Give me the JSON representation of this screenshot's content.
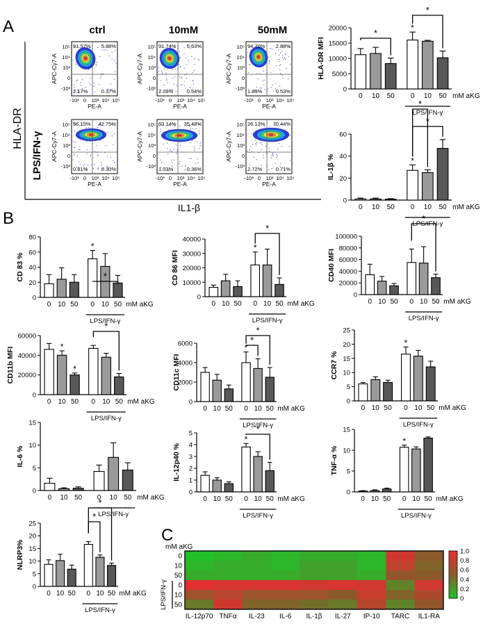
{
  "panels": {
    "A": "A",
    "B": "B",
    "C": "C"
  },
  "flow": {
    "conditions": [
      "ctrl",
      "10mM",
      "50mM"
    ],
    "row_label": "LPS/IFN-γ",
    "y_label": "HLA-DR",
    "x_label": "IL1-β",
    "axis_y": "APC-Cy7-A",
    "axis_x": "PE-A",
    "ticks_y": [
      "10⁵",
      "10⁴",
      "10³",
      "0",
      "-10³"
    ],
    "ticks_x": [
      "-10³",
      "0",
      "10³",
      "10⁴",
      "10⁵"
    ],
    "plots": [
      {
        "ul": "91.57%",
        "ur": "5.88%",
        "ll": "2.17%",
        "lr": "0.37%"
      },
      {
        "ul": "91.74%",
        "ur": "5.63%",
        "ll": "2.09%",
        "lr": "0.54%"
      },
      {
        "ul": "94.70%",
        "ur": "2.88%",
        "ll": "1.89%",
        "lr": "0.53%"
      },
      {
        "ul": "56.15%",
        "ur": "42.75%",
        "ll": "0.81%",
        "lr": "0.30%"
      },
      {
        "ul": "63.14%",
        "ur": "35.48%",
        "ll": "1.03%",
        "lr": "0.36%"
      },
      {
        "ul": "26.13%",
        "ur": "70.44%",
        "ll": "2.72%",
        "lr": "0.71%"
      }
    ]
  },
  "chart_data": [
    {
      "id": "hla",
      "type": "bar",
      "ylabel": "HLA-DR  MFI",
      "ylim": [
        0,
        20000
      ],
      "yticks": [
        "0",
        "5000",
        "10000",
        "15000",
        "20000"
      ],
      "categories": [
        "0",
        "10",
        "50",
        "0",
        "10",
        "50"
      ],
      "values": [
        11200,
        11600,
        8300,
        16000,
        15600,
        10200
      ],
      "errors": [
        2000,
        2000,
        1800,
        2600,
        300,
        2200
      ],
      "unit_label": "mM aKG",
      "group_label": "LPS/IFN-γ",
      "stars": [
        "*"
      ],
      "brackets": [
        "*",
        "*"
      ]
    },
    {
      "id": "il1b",
      "type": "bar",
      "ylabel": "IL-1β  %",
      "ylim": [
        0,
        60
      ],
      "yticks": [
        "0",
        "20",
        "40",
        "60"
      ],
      "categories": [
        "0",
        "10",
        "50",
        "0",
        "10",
        "50"
      ],
      "values": [
        1.0,
        1.0,
        0.8,
        27,
        25,
        47
      ],
      "errors": [
        0.8,
        0.8,
        0.5,
        5,
        2.5,
        8
      ],
      "unit_label": "mM aKG",
      "group_label": "LPS/IFN-γ",
      "stars": [
        "*"
      ],
      "brackets": [
        "*",
        "*"
      ]
    },
    {
      "id": "cd83",
      "type": "bar",
      "ylabel": "CD 83 %",
      "ylim": [
        0,
        80
      ],
      "yticks": [
        "0",
        "20",
        "40",
        "60",
        "80"
      ],
      "categories": [
        "0",
        "10",
        "50",
        "0",
        "10",
        "50"
      ],
      "values": [
        18,
        24,
        20,
        51,
        41,
        19
      ],
      "errors": [
        12,
        15,
        10,
        11,
        17,
        10
      ],
      "unit_label": "mM aKG",
      "group_label": "LPS/IFN-γ",
      "stars": [
        "*"
      ],
      "brackets": [
        "*"
      ]
    },
    {
      "id": "cd86",
      "type": "bar",
      "ylabel": "CD 86 MFI",
      "ylim": [
        0,
        40000
      ],
      "yticks": [
        "0",
        "10000",
        "20000",
        "30000",
        "40000"
      ],
      "categories": [
        "0",
        "10",
        "50",
        "0",
        "10",
        "50"
      ],
      "values": [
        6500,
        11000,
        7000,
        22000,
        22000,
        8500
      ],
      "errors": [
        1500,
        4500,
        4000,
        9000,
        11000,
        4500
      ],
      "unit_label": "mM aKG",
      "group_label": "LPS/IFN-γ",
      "stars": [
        "*"
      ],
      "brackets": [
        "*"
      ]
    },
    {
      "id": "cd40",
      "type": "bar",
      "ylabel": "CD40  MFI",
      "ylim": [
        0,
        100000
      ],
      "yticks": [
        "0",
        "20000",
        "40000",
        "60000",
        "80000",
        "100000"
      ],
      "categories": [
        "0",
        "10",
        "50",
        "0",
        "10",
        "50"
      ],
      "values": [
        34000,
        23000,
        15000,
        55000,
        54000,
        29000
      ],
      "errors": [
        18000,
        8000,
        4000,
        23000,
        28000,
        6000
      ],
      "unit_label": "mM aKG",
      "group_label": "LPS/IFN-γ",
      "stars": [],
      "brackets": [
        "*"
      ]
    },
    {
      "id": "cd11b",
      "type": "bar",
      "ylabel": "CD11b  MFI",
      "ylim": [
        0,
        60000
      ],
      "yticks": [
        "0",
        "20000",
        "40000",
        "60000"
      ],
      "categories": [
        "0",
        "10",
        "50",
        "0",
        "10",
        "50"
      ],
      "values": [
        46000,
        40000,
        20000,
        47000,
        38000,
        18000
      ],
      "errors": [
        6000,
        4500,
        2000,
        3000,
        4000,
        3500
      ],
      "unit_label": "mM aKG",
      "group_label": "LPS/IFN-γ",
      "stars": [
        "*",
        "*"
      ],
      "brackets": [
        "*"
      ]
    },
    {
      "id": "cd11c",
      "type": "bar",
      "ylabel": "CD11c MFI",
      "ylim": [
        0,
        6000
      ],
      "yticks": [
        "0",
        "2000",
        "4000",
        "6000"
      ],
      "categories": [
        "0",
        "10",
        "50",
        "0",
        "10",
        "50"
      ],
      "values": [
        3000,
        2200,
        1300,
        4000,
        3400,
        2500
      ],
      "errors": [
        500,
        600,
        400,
        1100,
        1000,
        1000
      ],
      "unit_label": "mM aKG",
      "group_label": "LPS/IFN-γ",
      "stars": [
        "*"
      ],
      "brackets": [
        "*",
        "*"
      ]
    },
    {
      "id": "ccr7",
      "type": "bar",
      "ylabel": "CCR7 %",
      "ylim": [
        0,
        25
      ],
      "yticks": [
        "0",
        "5",
        "10",
        "15",
        "20",
        "25"
      ],
      "categories": [
        "0",
        "10",
        "50",
        "0",
        "10",
        "50"
      ],
      "values": [
        6,
        7.5,
        6.5,
        16.5,
        15.8,
        12
      ],
      "errors": [
        0.5,
        1,
        0.8,
        2.5,
        2,
        2
      ],
      "unit_label": "mM aKG",
      "group_label": "LPS/IFN-γ",
      "stars": [
        "*"
      ],
      "brackets": []
    },
    {
      "id": "il6",
      "type": "bar",
      "ylabel": "IL-6 %",
      "ylim": [
        0,
        15
      ],
      "yticks": [
        "0",
        "5",
        "10",
        "15"
      ],
      "categories": [
        "0",
        "10",
        "50",
        "0",
        "10",
        "50"
      ],
      "values": [
        1.6,
        0.4,
        0.5,
        4.2,
        7.3,
        4.5
      ],
      "errors": [
        1.1,
        0.2,
        0.3,
        1.4,
        3.2,
        1.6
      ],
      "unit_label": "mM aKG",
      "group_label": "LPS/IFN-γ",
      "stars": [],
      "brackets": []
    },
    {
      "id": "il12",
      "type": "bar",
      "ylabel": "IL-12p40 %",
      "ylim": [
        0,
        5
      ],
      "yticks": [
        "0",
        "1",
        "2",
        "3",
        "4",
        "5"
      ],
      "categories": [
        "0",
        "10",
        "50",
        "0",
        "10",
        "50"
      ],
      "values": [
        1.4,
        1.0,
        0.7,
        3.8,
        3.0,
        1.8
      ],
      "errors": [
        0.3,
        0.2,
        0.15,
        0.3,
        0.4,
        0.7
      ],
      "unit_label": "mM aKG",
      "group_label": "LPS/IFN-γ",
      "stars": [
        "*"
      ],
      "brackets": [
        "*"
      ]
    },
    {
      "id": "tnf",
      "type": "bar",
      "ylabel": "TNF-α  %",
      "ylim": [
        0,
        15
      ],
      "yticks": [
        "0",
        "5",
        "10",
        "15"
      ],
      "categories": [
        "0",
        "10",
        "50",
        "0",
        "10",
        "50"
      ],
      "values": [
        0.2,
        0.3,
        0.7,
        10.7,
        10.3,
        12.9
      ],
      "errors": [
        0.1,
        0.2,
        0.2,
        0.5,
        0.5,
        0.3
      ],
      "unit_label": "mM aKG",
      "group_label": "LPS/IFN-γ",
      "stars": [
        "*"
      ],
      "brackets": []
    },
    {
      "id": "nlrp3",
      "type": "bar",
      "ylabel": "NLRP3%",
      "ylim": [
        0,
        25
      ],
      "yticks": [
        "0",
        "5",
        "10",
        "15",
        "20",
        "25"
      ],
      "categories": [
        "0",
        "10",
        "50",
        "0",
        "10",
        "50"
      ],
      "values": [
        8.7,
        10.2,
        6.8,
        16.6,
        11.5,
        8.3
      ],
      "errors": [
        1.8,
        2.5,
        1.6,
        1.1,
        0.9,
        0.9
      ],
      "unit_label": "mM aKG",
      "group_label": "LPS/IFN-γ",
      "stars": [],
      "brackets": [
        "*",
        "*"
      ]
    },
    {
      "id": "heatmap",
      "type": "heatmap",
      "title": "mM aKG",
      "group_label": "LPS/IFN-γ",
      "rows": [
        "0",
        "10",
        "50",
        "0",
        "10",
        "50"
      ],
      "columns": [
        "IL-12p70",
        "TNFα",
        "IL-23",
        "IL-6",
        "IL-1β",
        "IL-27",
        "IP-10",
        "TARC",
        "IL1-RA"
      ],
      "values": [
        [
          0.0,
          0.05,
          0.1,
          0.05,
          0.1,
          0.1,
          0.05,
          0.9,
          0.5
        ],
        [
          0.05,
          0.1,
          0.1,
          0.05,
          0.15,
          0.15,
          0.05,
          0.8,
          0.45
        ],
        [
          0.1,
          0.1,
          0.1,
          0.1,
          0.15,
          0.15,
          0.1,
          0.55,
          0.5
        ],
        [
          1.0,
          0.95,
          0.95,
          0.95,
          0.9,
          0.95,
          0.9,
          0.3,
          0.9
        ],
        [
          0.6,
          0.75,
          0.6,
          0.6,
          0.6,
          0.5,
          0.85,
          0.45,
          0.7
        ],
        [
          0.35,
          0.9,
          0.45,
          0.45,
          0.4,
          0.35,
          0.75,
          0.3,
          0.55
        ]
      ],
      "colorbar_ticks": [
        "1.0",
        "0.8",
        "0.6",
        "0.4",
        "0.2",
        "0"
      ],
      "colors": {
        "low": "#22c02a",
        "mid": "#8a5a2a",
        "high": "#e23030"
      }
    }
  ],
  "colors": {
    "white_bar": "#ffffff",
    "grey_bar": "#9a9a9a",
    "dark_bar": "#585858"
  }
}
